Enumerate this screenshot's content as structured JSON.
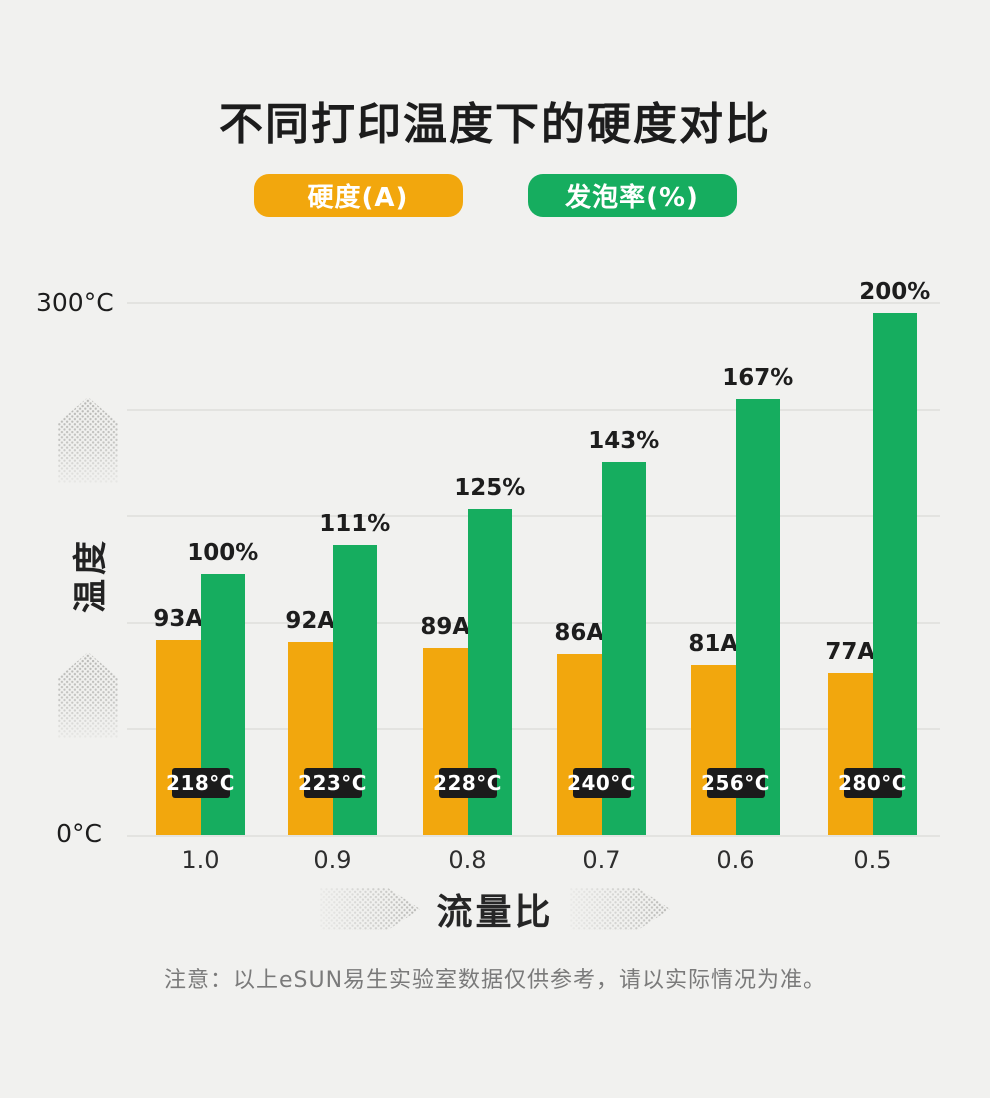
{
  "title": "不同打印温度下的硬度对比",
  "legend": [
    {
      "label": "硬度(A)",
      "color": "#F2A70D"
    },
    {
      "label": "发泡率(%)",
      "color": "#16AD5F"
    }
  ],
  "y_axis": {
    "top_label": "300°C",
    "bottom_label": "0°C",
    "axis_title": "温度"
  },
  "x_axis": {
    "title": "流量比"
  },
  "note": "注意：以上eSUN易生实验室数据仅供参考，请以实际情况为准。",
  "icons": {
    "y_axis_arrow": "dotted-up-arrow",
    "x_axis_arrow": "dotted-right-arrow"
  },
  "colors": {
    "background": "#F1F1EF",
    "gridline": "#E3E3E0",
    "badge": "#1B1B1B",
    "hardness_bar": "#F2A70D",
    "foaming_bar": "#16AD5F"
  },
  "chart_data": {
    "type": "bar",
    "categories": [
      "1.0",
      "0.9",
      "0.8",
      "0.7",
      "0.6",
      "0.5"
    ],
    "series": [
      {
        "name": "硬度(A)",
        "values": [
          93,
          92,
          89,
          86,
          81,
          77
        ],
        "labels": [
          "93A",
          "92A",
          "89A",
          "86A",
          "81A",
          "77A"
        ],
        "color": "#F2A70D"
      },
      {
        "name": "发泡率(%)",
        "values": [
          100,
          111,
          125,
          143,
          167,
          200
        ],
        "labels": [
          "100%",
          "111%",
          "125%",
          "143%",
          "167%",
          "200%"
        ],
        "color": "#16AD5F"
      }
    ],
    "bar_annotations": [
      "218°C",
      "223°C",
      "228°C",
      "240°C",
      "256°C",
      "280°C"
    ],
    "xlabel": "流量比",
    "ylabel": "温度",
    "y_ticks": [
      "0°C",
      "300°C"
    ],
    "ylim": [
      0,
      300
    ],
    "grid": true,
    "legend_position": "top"
  }
}
